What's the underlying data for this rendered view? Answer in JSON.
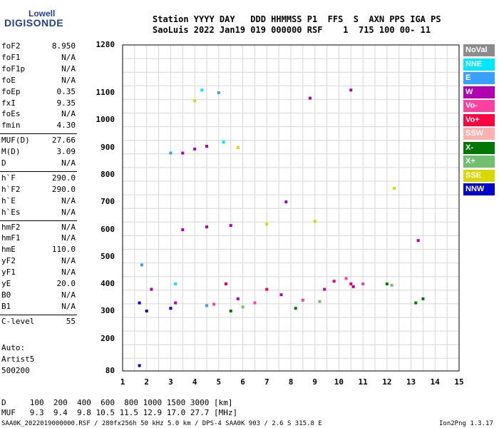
{
  "logo": {
    "top": "Lowell",
    "bottom": "DIGISONDE"
  },
  "header": {
    "line1": "Station YYYY DAY   DDD HHMMSS P1  FFS  S  AXN PPS IGA PS",
    "line2": "SaoLuis 2022 Jan19 019 000000 RSF    1  715 100 00- 11"
  },
  "params": [
    {
      "name": "foF2",
      "value": "8.950"
    },
    {
      "name": "foF1",
      "value": "N/A"
    },
    {
      "name": "foF1p",
      "value": "N/A"
    },
    {
      "name": "foE",
      "value": "N/A"
    },
    {
      "name": "foEp",
      "value": "0.35"
    },
    {
      "name": "fxI",
      "value": "9.35"
    },
    {
      "name": "foEs",
      "value": "N/A"
    },
    {
      "name": "fmin",
      "value": "4.30"
    },
    {
      "name": "MUF(D)",
      "value": "27.66"
    },
    {
      "name": "M(D)",
      "value": "3.09"
    },
    {
      "name": "D",
      "value": "N/A"
    },
    {
      "name": "h`F",
      "value": "290.0"
    },
    {
      "name": "h`F2",
      "value": "290.0"
    },
    {
      "name": "h`E",
      "value": "N/A"
    },
    {
      "name": "h`Es",
      "value": "N/A"
    },
    {
      "name": "hmF2",
      "value": "N/A"
    },
    {
      "name": "hmF1",
      "value": "N/A"
    },
    {
      "name": "hmE",
      "value": "110.0"
    },
    {
      "name": "yF2",
      "value": "N/A"
    },
    {
      "name": "yF1",
      "value": "N/A"
    },
    {
      "name": "yE",
      "value": "20.0"
    },
    {
      "name": "B0",
      "value": "N/A"
    },
    {
      "name": "B1",
      "value": "N/A"
    },
    {
      "name": "C-level",
      "value": "55"
    }
  ],
  "auto": {
    "line1": "Auto:",
    "line2": "Artist5",
    "line3": "500200"
  },
  "legend": [
    {
      "label": "NoVal",
      "color": "#8c8c8c"
    },
    {
      "label": "NNE",
      "color": "#00e8ff"
    },
    {
      "label": "E",
      "color": "#3aa0ff"
    },
    {
      "label": "W",
      "color": "#b000b0"
    },
    {
      "label": "Vo-",
      "color": "#ff40a0"
    },
    {
      "label": "Vo+",
      "color": "#ff0040"
    },
    {
      "label": "SSW",
      "color": "#ffb0b0"
    },
    {
      "label": "X-",
      "color": "#007800"
    },
    {
      "label": "X+",
      "color": "#70c070"
    },
    {
      "label": "SSE",
      "color": "#d8d800"
    },
    {
      "label": "NNW",
      "color": "#0000c8"
    }
  ],
  "chart_data": {
    "type": "scatter",
    "x_ticks": [
      "1",
      "2",
      "3",
      "4",
      "5",
      "6",
      "7",
      "8",
      "9",
      "10",
      "11",
      "12",
      "13",
      "14",
      "15"
    ],
    "y_ticks": [
      "1280",
      "1100",
      "1000",
      "900",
      "800",
      "700",
      "600",
      "500",
      "400",
      "300",
      "200",
      "80"
    ],
    "xlim": [
      1,
      15
    ],
    "grid": true,
    "series": [
      {
        "name": "W",
        "values": [
          [
            3.5,
            880
          ],
          [
            4.0,
            895
          ],
          [
            4.5,
            905
          ],
          [
            3.5,
            600
          ],
          [
            4.5,
            610
          ],
          [
            5.5,
            615
          ],
          [
            8.8,
            1080
          ],
          [
            10.5,
            1110
          ],
          [
            7.8,
            700
          ],
          [
            13.3,
            560
          ],
          [
            2.2,
            380
          ],
          [
            3.2,
            330
          ],
          [
            5.8,
            345
          ],
          [
            7.6,
            360
          ],
          [
            9.4,
            380
          ],
          [
            10.6,
            390
          ]
        ]
      },
      {
        "name": "NNE",
        "values": [
          [
            4.3,
            1110
          ],
          [
            5.2,
            920
          ],
          [
            3.2,
            400
          ]
        ]
      },
      {
        "name": "E",
        "values": [
          [
            5.0,
            1100
          ],
          [
            3.0,
            880
          ],
          [
            1.8,
            470
          ],
          [
            4.5,
            320
          ]
        ]
      },
      {
        "name": "Vo-",
        "values": [
          [
            4.8,
            325
          ],
          [
            6.5,
            330
          ],
          [
            8.5,
            340
          ],
          [
            10.3,
            420
          ],
          [
            11.0,
            400
          ]
        ]
      },
      {
        "name": "Vo+",
        "values": [
          [
            5.3,
            400
          ],
          [
            7.0,
            380
          ],
          [
            9.8,
            410
          ],
          [
            10.5,
            400
          ]
        ]
      },
      {
        "name": "X-",
        "values": [
          [
            5.5,
            300
          ],
          [
            8.2,
            310
          ],
          [
            12.0,
            400
          ],
          [
            13.2,
            330
          ],
          [
            13.5,
            345
          ]
        ]
      },
      {
        "name": "X+",
        "values": [
          [
            6.0,
            315
          ],
          [
            9.2,
            335
          ],
          [
            12.2,
            395
          ]
        ]
      },
      {
        "name": "SSE",
        "values": [
          [
            4.0,
            1070
          ],
          [
            5.8,
            900
          ],
          [
            7.0,
            620
          ],
          [
            9.0,
            630
          ],
          [
            12.3,
            750
          ]
        ]
      },
      {
        "name": "NNW",
        "values": [
          [
            1.7,
            330
          ],
          [
            2.0,
            300
          ],
          [
            3.0,
            310
          ],
          [
            1.7,
            100
          ]
        ]
      }
    ]
  },
  "bottom": {
    "d_row": "D     100  200  400  600  800 1000 1500 3000 [km]",
    "muf_row": "MUF   9.3  9.4  9.8 10.5 11.5 12.9 17.0 27.7 [MHz]",
    "footer": "SAA0K_2022019000000.RSF / 280fx256h 50 kHz 5.0 km / DPS-4 SAA0K 903 / 2.6 S 315.8 E",
    "version": "Ion2Png 1.3.17"
  }
}
